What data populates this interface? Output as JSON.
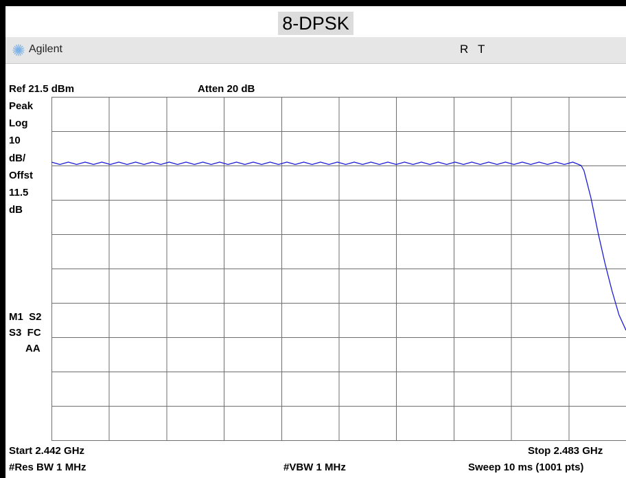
{
  "title": "8-DPSK",
  "header": {
    "brand": "Agilent",
    "status_flags": [
      "R",
      "T"
    ]
  },
  "top_info": {
    "ref_level": "Ref 21.5 dBm",
    "atten": "Atten 20 dB"
  },
  "left_panel": {
    "detector": "Peak",
    "scale_type": "Log",
    "scale_value": "10",
    "scale_unit": "dB/",
    "offset_label": "Offst",
    "offset_value": "11.5",
    "offset_unit": "dB",
    "markers_line1": "M1  S2",
    "markers_line2": "S3  FC",
    "markers_line3": "AA"
  },
  "bottom_info": {
    "start": "Start 2.442 GHz",
    "stop": "Stop 2.483 GHz",
    "res_bw": "#Res BW 1 MHz",
    "vbw": "#VBW 1 MHz",
    "sweep": "Sweep 10 ms (1001 pts)"
  },
  "colors": {
    "trace": "#1a1ad8",
    "grid": "#6e6e6e",
    "background": "#ffffff"
  },
  "chart_data": {
    "type": "line",
    "title": "8-DPSK",
    "x_unit": "GHz",
    "y_unit": "dBm",
    "xlim": [
      2.442,
      2.483
    ],
    "ylim": [
      -78.5,
      21.5
    ],
    "grid": true,
    "series": [
      {
        "points": [
          [
            2.442,
            2.5
          ],
          [
            2.4426,
            1.8
          ],
          [
            2.4432,
            2.5
          ],
          [
            2.4438,
            1.8
          ],
          [
            2.4444,
            2.5
          ],
          [
            2.445,
            1.8
          ],
          [
            2.4456,
            2.5
          ],
          [
            2.4462,
            1.8
          ],
          [
            2.4468,
            2.5
          ],
          [
            2.4474,
            1.8
          ],
          [
            2.448,
            2.5
          ],
          [
            2.4486,
            1.8
          ],
          [
            2.4492,
            2.5
          ],
          [
            2.4498,
            1.8
          ],
          [
            2.4504,
            2.5
          ],
          [
            2.451,
            1.8
          ],
          [
            2.4516,
            2.5
          ],
          [
            2.4522,
            1.8
          ],
          [
            2.4528,
            2.5
          ],
          [
            2.4534,
            1.8
          ],
          [
            2.454,
            2.5
          ],
          [
            2.4546,
            1.8
          ],
          [
            2.4552,
            2.5
          ],
          [
            2.4558,
            1.8
          ],
          [
            2.4564,
            2.5
          ],
          [
            2.457,
            1.8
          ],
          [
            2.4576,
            2.5
          ],
          [
            2.4582,
            1.8
          ],
          [
            2.4588,
            2.5
          ],
          [
            2.4594,
            1.8
          ],
          [
            2.46,
            2.5
          ],
          [
            2.4606,
            1.8
          ],
          [
            2.4612,
            2.5
          ],
          [
            2.4618,
            1.8
          ],
          [
            2.4624,
            2.5
          ],
          [
            2.463,
            1.8
          ],
          [
            2.4636,
            2.5
          ],
          [
            2.4642,
            1.8
          ],
          [
            2.4648,
            2.5
          ],
          [
            2.4654,
            1.8
          ],
          [
            2.466,
            2.5
          ],
          [
            2.4666,
            1.8
          ],
          [
            2.4672,
            2.5
          ],
          [
            2.4678,
            1.8
          ],
          [
            2.4684,
            2.5
          ],
          [
            2.469,
            1.8
          ],
          [
            2.4696,
            2.5
          ],
          [
            2.4702,
            1.8
          ],
          [
            2.4708,
            2.5
          ],
          [
            2.4714,
            1.8
          ],
          [
            2.472,
            2.5
          ],
          [
            2.4726,
            1.8
          ],
          [
            2.4732,
            2.5
          ],
          [
            2.4738,
            1.8
          ],
          [
            2.4744,
            2.5
          ],
          [
            2.475,
            1.8
          ],
          [
            2.4756,
            2.5
          ],
          [
            2.4762,
            1.8
          ],
          [
            2.4768,
            2.5
          ],
          [
            2.4774,
            1.8
          ],
          [
            2.478,
            2.5
          ],
          [
            2.4786,
            1.8
          ],
          [
            2.4792,
            2.5
          ],
          [
            2.4798,
            1.5
          ],
          [
            2.48,
            0.0
          ],
          [
            2.4805,
            -8.0
          ],
          [
            2.481,
            -18.0
          ],
          [
            2.4815,
            -27.0
          ],
          [
            2.482,
            -35.0
          ],
          [
            2.4825,
            -42.0
          ],
          [
            2.483,
            -46.5
          ]
        ]
      }
    ]
  }
}
